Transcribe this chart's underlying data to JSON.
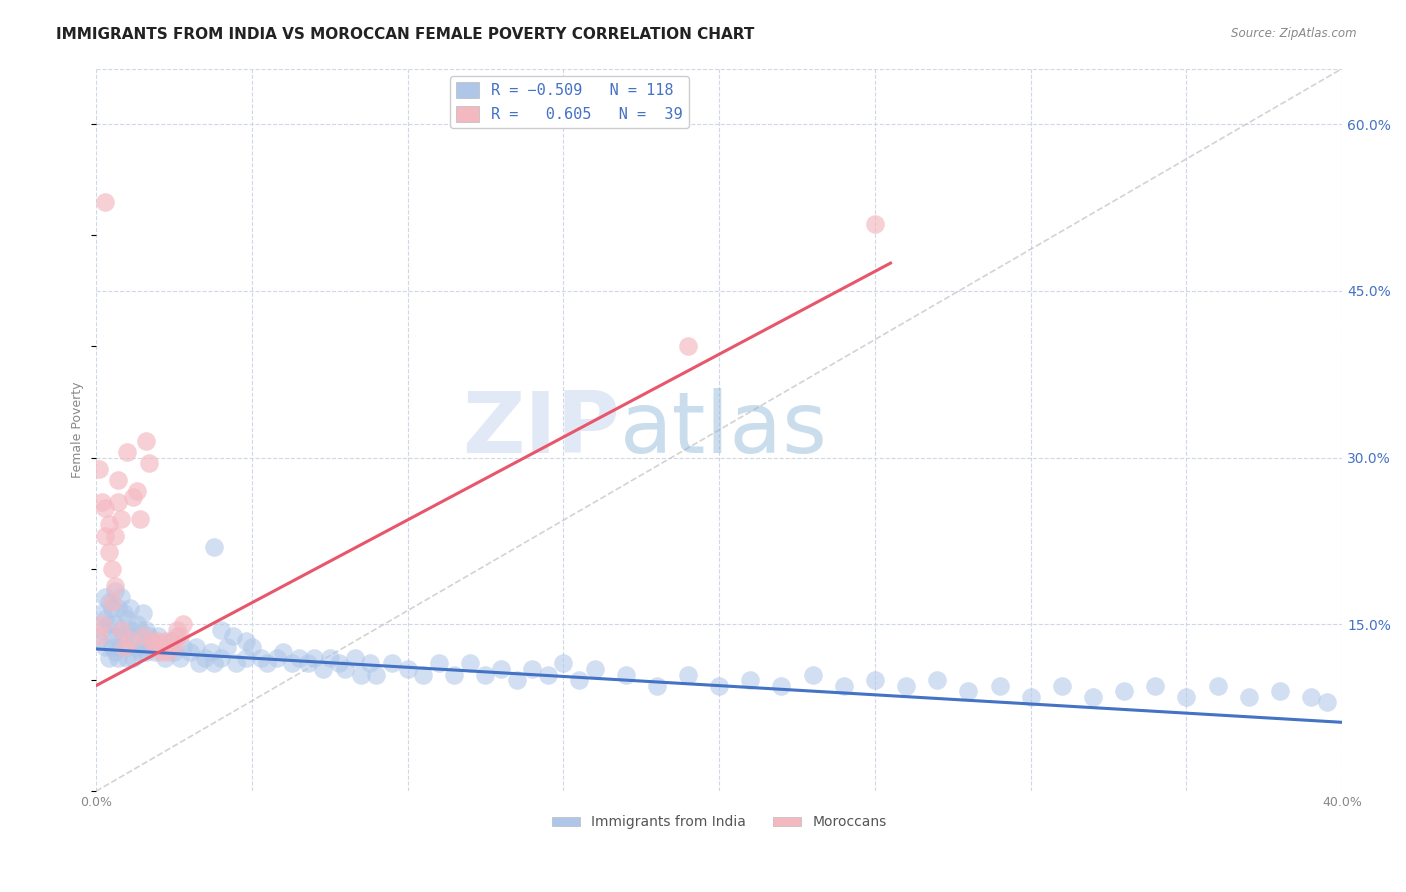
{
  "title": "IMMIGRANTS FROM INDIA VS MOROCCAN FEMALE POVERTY CORRELATION CHART",
  "source_text": "Source: ZipAtlas.com",
  "ylabel": "Female Poverty",
  "xlim": [
    0.0,
    0.4
  ],
  "ylim": [
    0.0,
    0.65
  ],
  "x_ticks": [
    0.0,
    0.05,
    0.1,
    0.15,
    0.2,
    0.25,
    0.3,
    0.35,
    0.4
  ],
  "y_ticks_right": [
    0.15,
    0.3,
    0.45,
    0.6
  ],
  "y_tick_labels_right": [
    "15.0%",
    "30.0%",
    "45.0%",
    "60.0%"
  ],
  "watermark_zip": "ZIP",
  "watermark_atlas": "atlas",
  "india_color": "#aec6e8",
  "morocco_color": "#f4b8c1",
  "india_line_color": "#4472c4",
  "morocco_line_color": "#e8566c",
  "diagonal_color": "#c8c8c8",
  "background_color": "#ffffff",
  "grid_color": "#d0d8e8",
  "title_fontsize": 11,
  "axis_label_fontsize": 9,
  "tick_fontsize": 9,
  "india_x": [
    0.001,
    0.002,
    0.002,
    0.003,
    0.003,
    0.003,
    0.004,
    0.004,
    0.004,
    0.005,
    0.005,
    0.005,
    0.006,
    0.006,
    0.006,
    0.007,
    0.007,
    0.007,
    0.008,
    0.008,
    0.008,
    0.009,
    0.009,
    0.01,
    0.01,
    0.01,
    0.011,
    0.011,
    0.012,
    0.012,
    0.013,
    0.013,
    0.014,
    0.014,
    0.015,
    0.015,
    0.016,
    0.016,
    0.017,
    0.018,
    0.019,
    0.02,
    0.021,
    0.022,
    0.024,
    0.025,
    0.026,
    0.027,
    0.028,
    0.03,
    0.032,
    0.033,
    0.035,
    0.037,
    0.038,
    0.04,
    0.042,
    0.045,
    0.048,
    0.05,
    0.053,
    0.055,
    0.058,
    0.06,
    0.063,
    0.065,
    0.068,
    0.07,
    0.073,
    0.075,
    0.078,
    0.08,
    0.083,
    0.085,
    0.088,
    0.09,
    0.095,
    0.1,
    0.105,
    0.11,
    0.115,
    0.12,
    0.125,
    0.13,
    0.135,
    0.14,
    0.145,
    0.15,
    0.155,
    0.16,
    0.17,
    0.18,
    0.19,
    0.2,
    0.21,
    0.22,
    0.23,
    0.24,
    0.25,
    0.26,
    0.27,
    0.28,
    0.29,
    0.3,
    0.31,
    0.32,
    0.33,
    0.34,
    0.35,
    0.36,
    0.37,
    0.38,
    0.39,
    0.395,
    0.038,
    0.044,
    0.048,
    0.04
  ],
  "india_y": [
    0.135,
    0.16,
    0.145,
    0.175,
    0.13,
    0.155,
    0.12,
    0.15,
    0.17,
    0.14,
    0.165,
    0.13,
    0.18,
    0.15,
    0.125,
    0.165,
    0.14,
    0.12,
    0.175,
    0.145,
    0.13,
    0.16,
    0.14,
    0.155,
    0.13,
    0.12,
    0.165,
    0.145,
    0.14,
    0.12,
    0.15,
    0.13,
    0.145,
    0.125,
    0.16,
    0.13,
    0.145,
    0.125,
    0.14,
    0.135,
    0.125,
    0.14,
    0.13,
    0.12,
    0.135,
    0.125,
    0.14,
    0.12,
    0.13,
    0.125,
    0.13,
    0.115,
    0.12,
    0.125,
    0.115,
    0.12,
    0.13,
    0.115,
    0.12,
    0.13,
    0.12,
    0.115,
    0.12,
    0.125,
    0.115,
    0.12,
    0.115,
    0.12,
    0.11,
    0.12,
    0.115,
    0.11,
    0.12,
    0.105,
    0.115,
    0.105,
    0.115,
    0.11,
    0.105,
    0.115,
    0.105,
    0.115,
    0.105,
    0.11,
    0.1,
    0.11,
    0.105,
    0.115,
    0.1,
    0.11,
    0.105,
    0.095,
    0.105,
    0.095,
    0.1,
    0.095,
    0.105,
    0.095,
    0.1,
    0.095,
    0.1,
    0.09,
    0.095,
    0.085,
    0.095,
    0.085,
    0.09,
    0.095,
    0.085,
    0.095,
    0.085,
    0.09,
    0.085,
    0.08,
    0.22,
    0.14,
    0.135,
    0.145
  ],
  "morocco_x": [
    0.001,
    0.001,
    0.002,
    0.002,
    0.003,
    0.003,
    0.004,
    0.004,
    0.005,
    0.005,
    0.006,
    0.006,
    0.007,
    0.007,
    0.008,
    0.008,
    0.009,
    0.01,
    0.011,
    0.012,
    0.013,
    0.014,
    0.015,
    0.016,
    0.017,
    0.018,
    0.019,
    0.02,
    0.021,
    0.022,
    0.023,
    0.024,
    0.025,
    0.026,
    0.027,
    0.028,
    0.19,
    0.25,
    0.003
  ],
  "morocco_y": [
    0.14,
    0.29,
    0.15,
    0.26,
    0.255,
    0.23,
    0.24,
    0.215,
    0.2,
    0.17,
    0.23,
    0.185,
    0.26,
    0.28,
    0.145,
    0.245,
    0.13,
    0.305,
    0.135,
    0.265,
    0.27,
    0.245,
    0.14,
    0.315,
    0.295,
    0.135,
    0.13,
    0.135,
    0.125,
    0.135,
    0.125,
    0.135,
    0.13,
    0.145,
    0.14,
    0.15,
    0.4,
    0.51,
    0.53
  ],
  "india_line_x": [
    0.0,
    0.4
  ],
  "india_line_y": [
    0.128,
    0.062
  ],
  "morocco_line_x": [
    0.0,
    0.255
  ],
  "morocco_line_y": [
    0.095,
    0.475
  ]
}
